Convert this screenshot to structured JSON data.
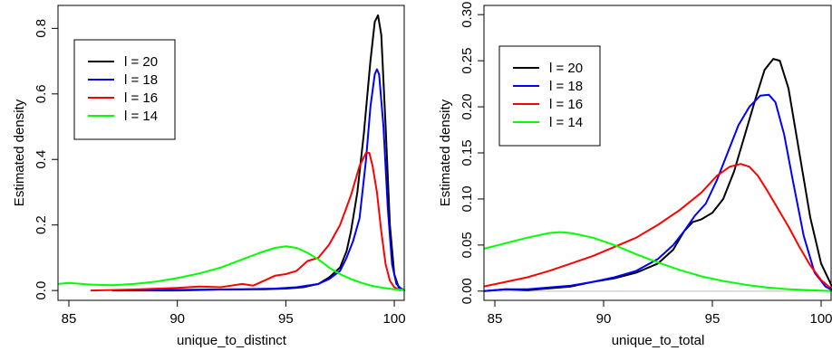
{
  "chart_data": [
    {
      "type": "line",
      "xlabel": "unique_to_distinct",
      "ylabel": "Estimated density",
      "xlim": [
        84.5,
        100.5
      ],
      "ylim": [
        -0.03,
        0.87
      ],
      "xticks": [
        85,
        90,
        95,
        100
      ],
      "yticks": [
        0.0,
        0.2,
        0.4,
        0.6,
        0.8
      ],
      "ytick_labels": [
        "0.0",
        "0.2",
        "0.4",
        "0.6",
        "0.8"
      ],
      "legend_position": "top-left",
      "series": [
        {
          "name": "l = 20",
          "color": "#000000",
          "x": [
            87,
            90,
            92,
            94,
            95,
            95.8,
            96.5,
            97,
            97.5,
            97.8,
            98,
            98.3,
            98.6,
            98.9,
            99.1,
            99.25,
            99.4,
            99.6,
            99.8,
            100,
            100.2,
            100.5
          ],
          "y": [
            0.0,
            0.0,
            0.003,
            0.004,
            0.006,
            0.01,
            0.02,
            0.04,
            0.07,
            0.12,
            0.18,
            0.3,
            0.48,
            0.7,
            0.82,
            0.84,
            0.78,
            0.5,
            0.2,
            0.05,
            0.01,
            0.0
          ]
        },
        {
          "name": "l = 18",
          "color": "#0000ff",
          "x": [
            87,
            90,
            93,
            94.5,
            95.5,
            96.5,
            97,
            97.5,
            97.8,
            98.1,
            98.4,
            98.7,
            98.9,
            99.1,
            99.2,
            99.3,
            99.5,
            99.7,
            99.9,
            100.1,
            100.4
          ],
          "y": [
            0.0,
            0.002,
            0.004,
            0.006,
            0.01,
            0.02,
            0.035,
            0.06,
            0.1,
            0.15,
            0.22,
            0.4,
            0.56,
            0.66,
            0.675,
            0.66,
            0.5,
            0.25,
            0.08,
            0.02,
            0.0
          ],
          "label_x": 99.25
        },
        {
          "name": "l = 16",
          "color": "#ff0000",
          "x": [
            86,
            88,
            90,
            91,
            92,
            93,
            93.5,
            94,
            94.5,
            95,
            95.5,
            96,
            96.5,
            97,
            97.5,
            98,
            98.4,
            98.7,
            98.85,
            99,
            99.2,
            99.4,
            99.6,
            99.8,
            100,
            100.3
          ],
          "y": [
            0.0,
            0.003,
            0.008,
            0.012,
            0.01,
            0.02,
            0.015,
            0.03,
            0.045,
            0.05,
            0.06,
            0.09,
            0.1,
            0.14,
            0.2,
            0.29,
            0.38,
            0.42,
            0.42,
            0.38,
            0.3,
            0.18,
            0.08,
            0.03,
            0.01,
            0.0
          ]
        },
        {
          "name": "l = 14",
          "color": "#00ff00",
          "x": [
            84.5,
            85,
            86,
            87,
            88,
            89,
            90,
            91,
            92,
            93,
            93.8,
            94.5,
            95,
            95.5,
            96,
            96.5,
            97,
            97.5,
            98,
            98.5,
            99,
            99.5,
            100,
            100.5
          ],
          "y": [
            0.02,
            0.023,
            0.018,
            0.016,
            0.02,
            0.027,
            0.038,
            0.052,
            0.07,
            0.095,
            0.115,
            0.13,
            0.135,
            0.13,
            0.115,
            0.095,
            0.07,
            0.05,
            0.035,
            0.023,
            0.014,
            0.008,
            0.004,
            0.002
          ]
        }
      ]
    },
    {
      "type": "line",
      "xlabel": "unique_to_total",
      "ylabel": "Estimated density",
      "xlim": [
        84.5,
        100.5
      ],
      "ylim": [
        -0.01,
        0.31
      ],
      "xticks": [
        85,
        90,
        95,
        100
      ],
      "yticks": [
        0.0,
        0.05,
        0.1,
        0.15,
        0.2,
        0.25,
        0.3
      ],
      "ytick_labels": [
        "0.00",
        "0.05",
        "0.10",
        "0.15",
        "0.20",
        "0.25",
        "0.30"
      ],
      "zero_line": true,
      "legend_position": "top-left",
      "series": [
        {
          "name": "l = 20",
          "color": "#000000",
          "x": [
            84.5,
            85.5,
            86.5,
            87.5,
            88.5,
            89.5,
            90.5,
            91.5,
            92.5,
            93.2,
            93.7,
            94.1,
            94.5,
            95,
            95.5,
            96,
            96.5,
            97,
            97.4,
            97.8,
            98.1,
            98.5,
            99,
            99.5,
            100,
            100.5
          ],
          "y": [
            0.0,
            0.002,
            0.001,
            0.003,
            0.005,
            0.01,
            0.014,
            0.02,
            0.03,
            0.045,
            0.065,
            0.075,
            0.078,
            0.085,
            0.1,
            0.13,
            0.17,
            0.21,
            0.24,
            0.252,
            0.25,
            0.22,
            0.15,
            0.08,
            0.03,
            0.005
          ]
        },
        {
          "name": "l = 18",
          "color": "#0000ff",
          "x": [
            84.5,
            85.5,
            86.5,
            87.5,
            88.5,
            89.5,
            90.5,
            91.5,
            92.5,
            93.2,
            93.7,
            94.2,
            94.7,
            95.2,
            95.7,
            96.2,
            96.7,
            97.2,
            97.6,
            97.9,
            98.3,
            98.7,
            99.2,
            99.7,
            100.2,
            100.5
          ],
          "y": [
            0.0,
            0.002,
            0.002,
            0.004,
            0.006,
            0.01,
            0.015,
            0.022,
            0.035,
            0.05,
            0.065,
            0.082,
            0.095,
            0.12,
            0.15,
            0.18,
            0.2,
            0.212,
            0.213,
            0.205,
            0.17,
            0.12,
            0.06,
            0.02,
            0.005,
            0.001
          ]
        },
        {
          "name": "l = 16",
          "color": "#ff0000",
          "x": [
            84.5,
            85.5,
            86.5,
            87.5,
            88.5,
            89.5,
            90.5,
            91.5,
            92.5,
            93.5,
            94.5,
            95.2,
            95.8,
            96.3,
            96.7,
            97.1,
            97.5,
            98,
            98.5,
            99,
            99.5,
            100,
            100.5
          ],
          "y": [
            0.005,
            0.01,
            0.015,
            0.022,
            0.03,
            0.038,
            0.048,
            0.058,
            0.072,
            0.088,
            0.107,
            0.125,
            0.135,
            0.138,
            0.135,
            0.125,
            0.11,
            0.09,
            0.07,
            0.048,
            0.028,
            0.012,
            0.002
          ]
        },
        {
          "name": "l = 14",
          "color": "#00ff00",
          "x": [
            84.5,
            85.5,
            86.5,
            87.5,
            88,
            88.5,
            89.5,
            90.5,
            91.5,
            92.5,
            93.5,
            94.5,
            95.5,
            96.5,
            97.5,
            98.5,
            99.5,
            100.5
          ],
          "y": [
            0.046,
            0.052,
            0.058,
            0.063,
            0.064,
            0.063,
            0.058,
            0.05,
            0.04,
            0.031,
            0.023,
            0.016,
            0.011,
            0.007,
            0.004,
            0.002,
            0.001,
            0.0
          ]
        }
      ]
    }
  ]
}
